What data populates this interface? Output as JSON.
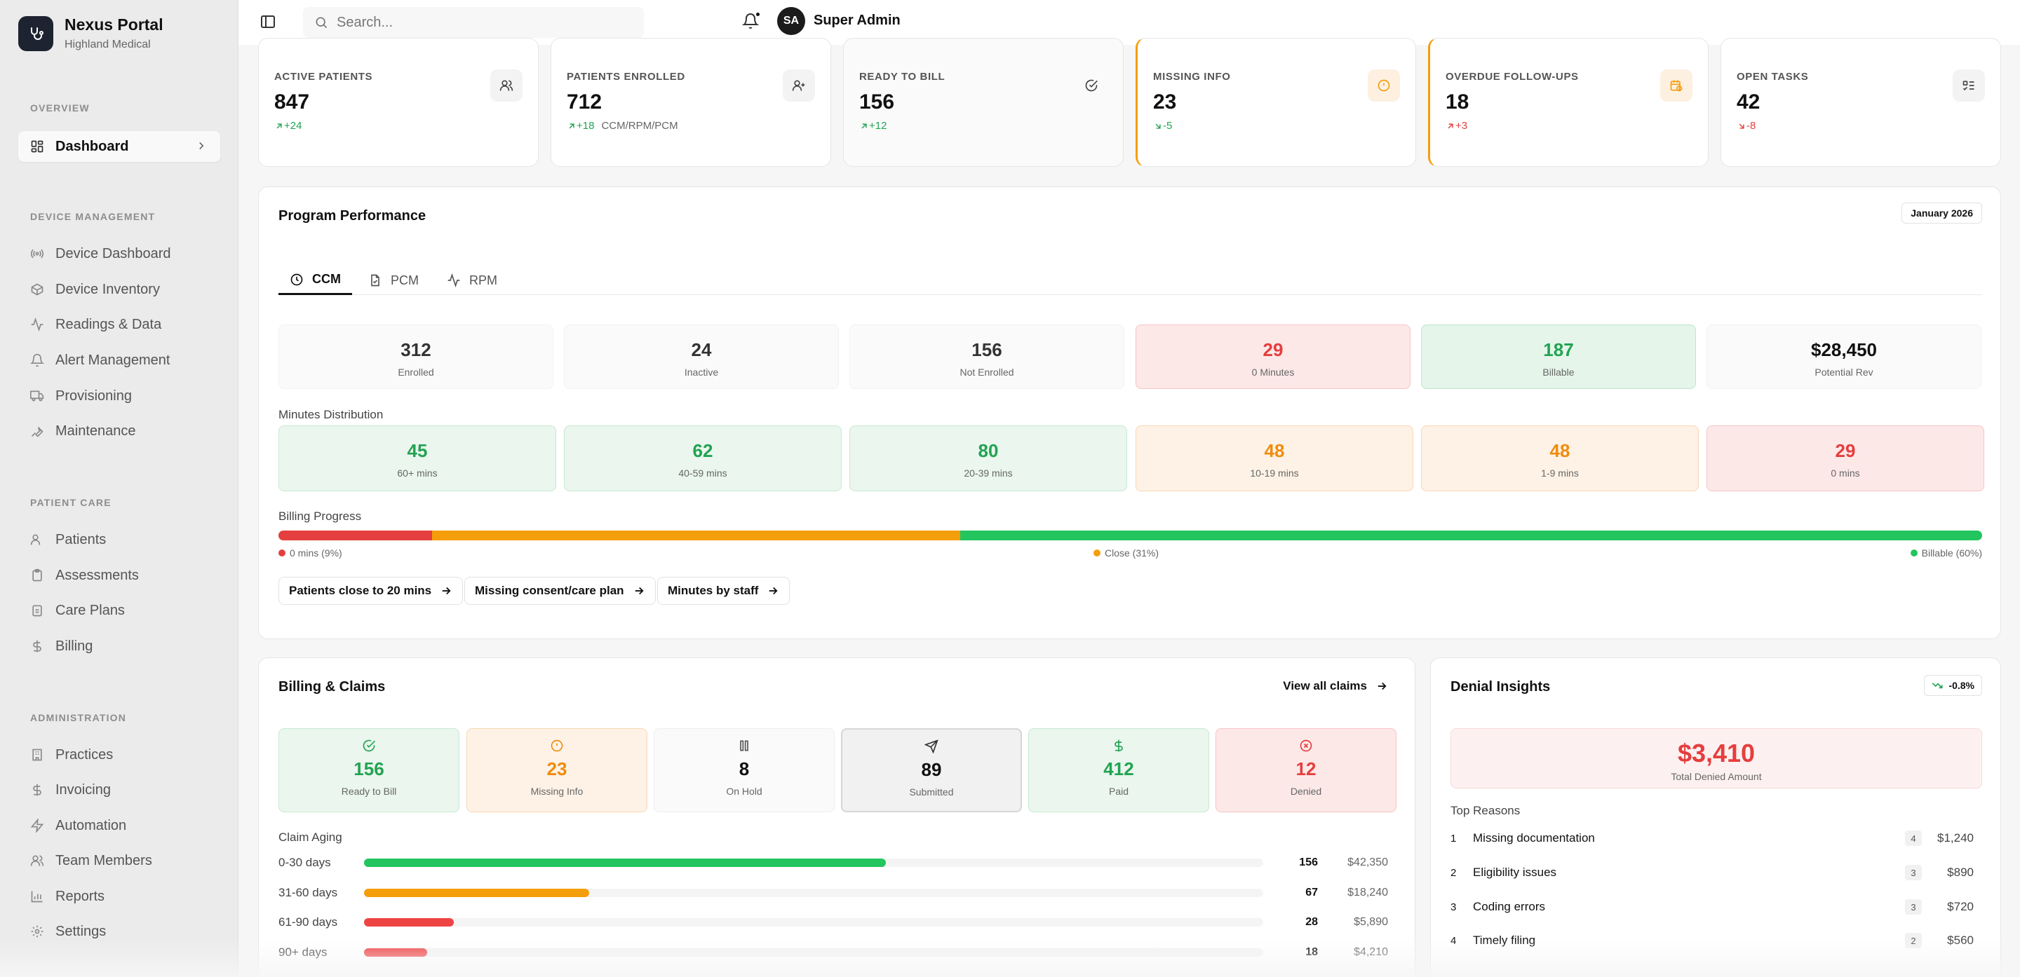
{
  "brand": {
    "name": "Nexus Portal",
    "subtitle": "Highland Medical"
  },
  "sidebar": {
    "sections": [
      {
        "title": "OVERVIEW"
      },
      {
        "title": "DEVICE MANAGEMENT"
      },
      {
        "title": "PATIENT CARE"
      },
      {
        "title": "ADMINISTRATION"
      }
    ],
    "active": {
      "label": "Dashboard",
      "icon": "dashboard-icon"
    },
    "device_items": [
      {
        "label": "Device Dashboard",
        "icon": "radio-icon"
      },
      {
        "label": "Device Inventory",
        "icon": "package-icon"
      },
      {
        "label": "Readings & Data",
        "icon": "activity-icon"
      },
      {
        "label": "Alert Management",
        "icon": "bell-icon"
      },
      {
        "label": "Provisioning",
        "icon": "truck-icon"
      },
      {
        "label": "Maintenance",
        "icon": "wrench-icon"
      }
    ],
    "patient_items": [
      {
        "label": "Patients",
        "icon": "users-icon"
      },
      {
        "label": "Assessments",
        "icon": "clipboard-icon"
      },
      {
        "label": "Care Plans",
        "icon": "clipboard-list-icon"
      },
      {
        "label": "Billing",
        "icon": "dollar-icon"
      }
    ],
    "admin_items": [
      {
        "label": "Practices",
        "icon": "building-icon"
      },
      {
        "label": "Invoicing",
        "icon": "dollar-icon"
      },
      {
        "label": "Automation",
        "icon": "zap-icon"
      },
      {
        "label": "Team Members",
        "icon": "team-icon"
      },
      {
        "label": "Reports",
        "icon": "bar-chart-icon"
      },
      {
        "label": "Settings",
        "icon": "gear-icon"
      }
    ]
  },
  "topbar": {
    "search_placeholder": "Search...",
    "user": {
      "initials": "SA",
      "name": "Super Admin"
    }
  },
  "stats": [
    {
      "label": "ACTIVE PATIENTS",
      "value": "847",
      "delta": "+24",
      "sub": "",
      "icon": "users-icon"
    },
    {
      "label": "PATIENTS ENROLLED",
      "value": "712",
      "delta": "+18",
      "sub": "CCM/RPM/PCM",
      "icon": "user-plus-icon"
    },
    {
      "label": "READY TO BILL",
      "value": "156",
      "delta": "+12",
      "sub": "",
      "icon": "check-circle-icon"
    },
    {
      "label": "MISSING INFO",
      "value": "23",
      "delta": "-5",
      "sub": "",
      "icon": "alert-circle-icon"
    },
    {
      "label": "OVERDUE FOLLOW-UPS",
      "value": "18",
      "delta": "+3",
      "sub": "",
      "icon": "calendar-clock-icon"
    },
    {
      "label": "OPEN TASKS",
      "value": "42",
      "delta": "-8",
      "sub": "",
      "icon": "list-todo-icon"
    }
  ],
  "program": {
    "title": "Program Performance",
    "month": "January 2026",
    "tabs": [
      {
        "label": "CCM",
        "icon": "clock-icon"
      },
      {
        "label": "PCM",
        "icon": "file-icon"
      },
      {
        "label": "RPM",
        "icon": "activity-icon"
      }
    ],
    "metrics": [
      {
        "value": "312",
        "label": "Enrolled"
      },
      {
        "value": "24",
        "label": "Inactive"
      },
      {
        "value": "156",
        "label": "Not Enrolled"
      },
      {
        "value": "29",
        "label": "0 Minutes"
      },
      {
        "value": "187",
        "label": "Billable"
      },
      {
        "value": "$28,450",
        "label": "Potential Rev"
      }
    ],
    "distribution_label": "Minutes Distribution",
    "distribution": [
      {
        "value": "45",
        "label": "60+ mins"
      },
      {
        "value": "62",
        "label": "40-59 mins"
      },
      {
        "value": "80",
        "label": "20-39 mins"
      },
      {
        "value": "48",
        "label": "10-19 mins"
      },
      {
        "value": "48",
        "label": "1-9 mins"
      },
      {
        "value": "29",
        "label": "0 mins"
      }
    ],
    "billing_progress_label": "Billing Progress",
    "billing_progress": [
      {
        "label": "0 mins (9%)",
        "pct": 9,
        "color": "#e53e3e"
      },
      {
        "label": "Close (31%)",
        "pct": 31,
        "color": "#f59e0b"
      },
      {
        "label": "Billable (60%)",
        "pct": 60,
        "color": "#22c55e"
      }
    ],
    "shortcuts": [
      {
        "label": "Patients close to 20 mins"
      },
      {
        "label": "Missing consent/care plan"
      },
      {
        "label": "Minutes by staff"
      }
    ]
  },
  "billing": {
    "title": "Billing & Claims",
    "link": "View all claims",
    "statuses": [
      {
        "value": "156",
        "label": "Ready to Bill",
        "icon": "check-circle-icon"
      },
      {
        "value": "23",
        "label": "Missing Info",
        "icon": "alert-circle-icon"
      },
      {
        "value": "8",
        "label": "On Hold",
        "icon": "pause-icon"
      },
      {
        "value": "89",
        "label": "Submitted",
        "icon": "send-icon"
      },
      {
        "value": "412",
        "label": "Paid",
        "icon": "dollar-icon"
      },
      {
        "value": "12",
        "label": "Denied",
        "icon": "x-circle-icon"
      }
    ],
    "aging_label": "Claim Aging",
    "aging": [
      {
        "label": "0-30 days",
        "count": "156",
        "amount": "$42,350",
        "pct": 58,
        "color": "#22c55e"
      },
      {
        "label": "31-60 days",
        "count": "67",
        "amount": "$18,240",
        "pct": 25,
        "color": "#f59e0b"
      },
      {
        "label": "61-90 days",
        "count": "28",
        "amount": "$5,890",
        "pct": 10,
        "color": "#ef4444"
      },
      {
        "label": "90+ days",
        "count": "18",
        "amount": "$4,210",
        "pct": 7,
        "color": "#ef4444"
      }
    ]
  },
  "denial": {
    "title": "Denial Insights",
    "trend": "-0.8%",
    "total": "$3,410",
    "total_label": "Total Denied Amount",
    "reasons_label": "Top Reasons",
    "reasons": [
      {
        "rank": "1",
        "label": "Missing documentation",
        "count": "4",
        "amount": "$1,240"
      },
      {
        "rank": "2",
        "label": "Eligibility issues",
        "count": "3",
        "amount": "$890"
      },
      {
        "rank": "3",
        "label": "Coding errors",
        "count": "3",
        "amount": "$720"
      },
      {
        "rank": "4",
        "label": "Timely filing",
        "count": "2",
        "amount": "$560"
      }
    ]
  }
}
